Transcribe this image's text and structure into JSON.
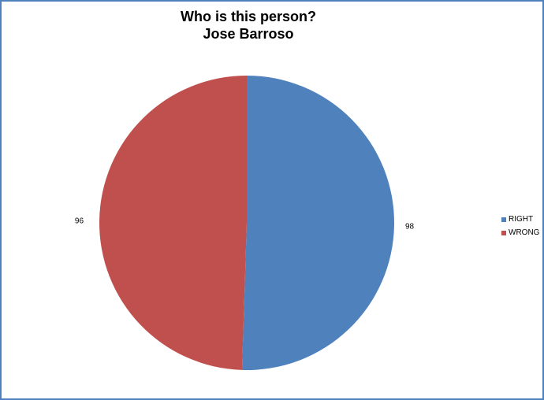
{
  "chart_data": {
    "type": "pie",
    "title": [
      "Who is this person?",
      "Jose Barroso"
    ],
    "categories": [
      "RIGHT",
      "WRONG"
    ],
    "values": [
      98,
      96
    ],
    "colors": [
      "#4f81bd",
      "#c0504d"
    ],
    "legend_position": "right"
  }
}
